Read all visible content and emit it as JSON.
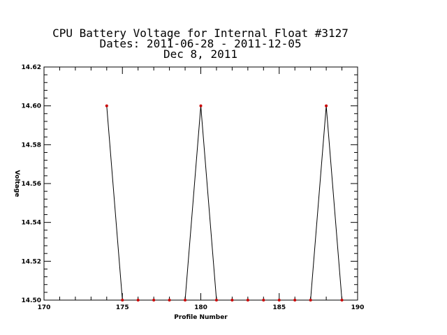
{
  "chart_data": {
    "type": "line",
    "title_lines": [
      "CPU Battery Voltage for Internal Float #3127",
      "Dates:  2011-06-28 -  2011-12-05",
      "Dec  8, 2011"
    ],
    "xlabel": "Profile Number",
    "ylabel": "Voltage",
    "xlim": [
      170,
      190
    ],
    "ylim": [
      14.5,
      14.62
    ],
    "x_ticks": [
      "170",
      "175",
      "180",
      "185",
      "190"
    ],
    "y_ticks": [
      "14.50",
      "14.52",
      "14.54",
      "14.56",
      "14.58",
      "14.60",
      "14.62"
    ],
    "grid": false,
    "legend": "none",
    "line_color": "#000000",
    "marker_color": "#cc0000",
    "series": [
      {
        "x": [
          174,
          175,
          176,
          177,
          178,
          179,
          180,
          181,
          182,
          183,
          184,
          185,
          186,
          187,
          188,
          189
        ],
        "y": [
          14.6,
          14.5,
          14.5,
          14.5,
          14.5,
          14.5,
          14.6,
          14.5,
          14.5,
          14.5,
          14.5,
          14.5,
          14.5,
          14.5,
          14.6,
          14.5
        ]
      }
    ]
  }
}
